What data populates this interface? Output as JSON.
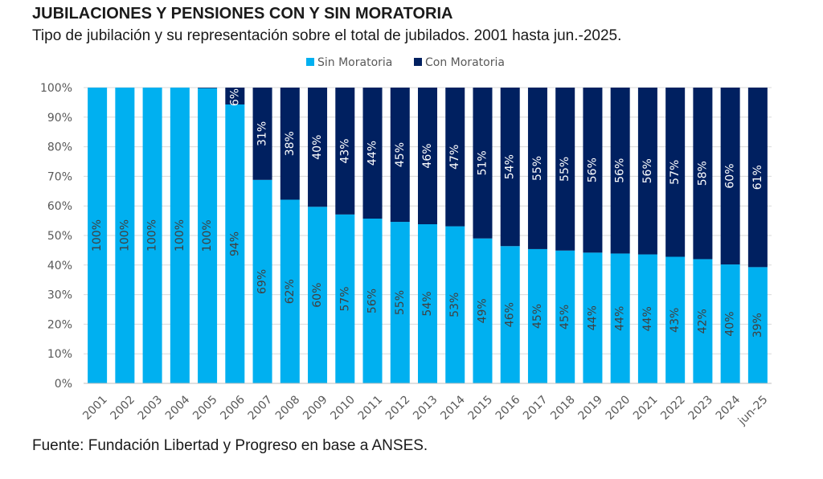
{
  "chart_data": {
    "type": "bar",
    "stacked": true,
    "title": "JUBILACIONES Y PENSIONES CON Y SIN MORATORIA",
    "subtitle": "Tipo de jubilación y su representación sobre el total de jubilados. 2001 hasta jun.-2025.",
    "source": "Fuente: Fundación Libertad y Progreso en base a ANSES.",
    "categories": [
      "2001",
      "2002",
      "2003",
      "2004",
      "2005",
      "2006",
      "2007",
      "2008",
      "2009",
      "2010",
      "2011",
      "2012",
      "2013",
      "2014",
      "2015",
      "2016",
      "2017",
      "2018",
      "2019",
      "2020",
      "2021",
      "2022",
      "2023",
      "2024",
      "jun-25"
    ],
    "series": [
      {
        "name": "Sin Moratoria",
        "color": "#00b0f0",
        "values": [
          100,
          100,
          100,
          100,
          99.8,
          94.3,
          68.8,
          62.1,
          59.7,
          57.1,
          55.7,
          54.6,
          53.8,
          53.1,
          49.0,
          46.4,
          45.4,
          44.9,
          44.2,
          43.9,
          43.6,
          42.8,
          42.0,
          40.2,
          39.3
        ],
        "labels": [
          "100%",
          "100%",
          "100%",
          "100%",
          "100%",
          "94%",
          "69%",
          "62%",
          "60%",
          "57%",
          "56%",
          "55%",
          "54%",
          "53%",
          "49%",
          "46%",
          "45%",
          "45%",
          "44%",
          "44%",
          "44%",
          "43%",
          "42%",
          "40%",
          "39%"
        ]
      },
      {
        "name": "Con Moratoria",
        "color": "#002060",
        "values": [
          0,
          0,
          0,
          0,
          0.2,
          5.7,
          31.2,
          37.9,
          40.3,
          42.9,
          44.3,
          45.4,
          46.2,
          46.9,
          51.0,
          53.6,
          54.6,
          55.1,
          55.8,
          56.1,
          56.4,
          57.2,
          58.0,
          59.8,
          60.7
        ],
        "labels": [
          "",
          "",
          "",
          "",
          "",
          "6%",
          "31%",
          "38%",
          "40%",
          "43%",
          "44%",
          "45%",
          "46%",
          "47%",
          "51%",
          "54%",
          "55%",
          "55%",
          "56%",
          "56%",
          "56%",
          "57%",
          "58%",
          "60%",
          "61%"
        ]
      }
    ],
    "yticks": [
      "0%",
      "10%",
      "20%",
      "30%",
      "40%",
      "50%",
      "60%",
      "70%",
      "80%",
      "90%",
      "100%"
    ],
    "ylim": [
      0,
      100
    ],
    "grid": true,
    "legend_position": "top-center"
  }
}
